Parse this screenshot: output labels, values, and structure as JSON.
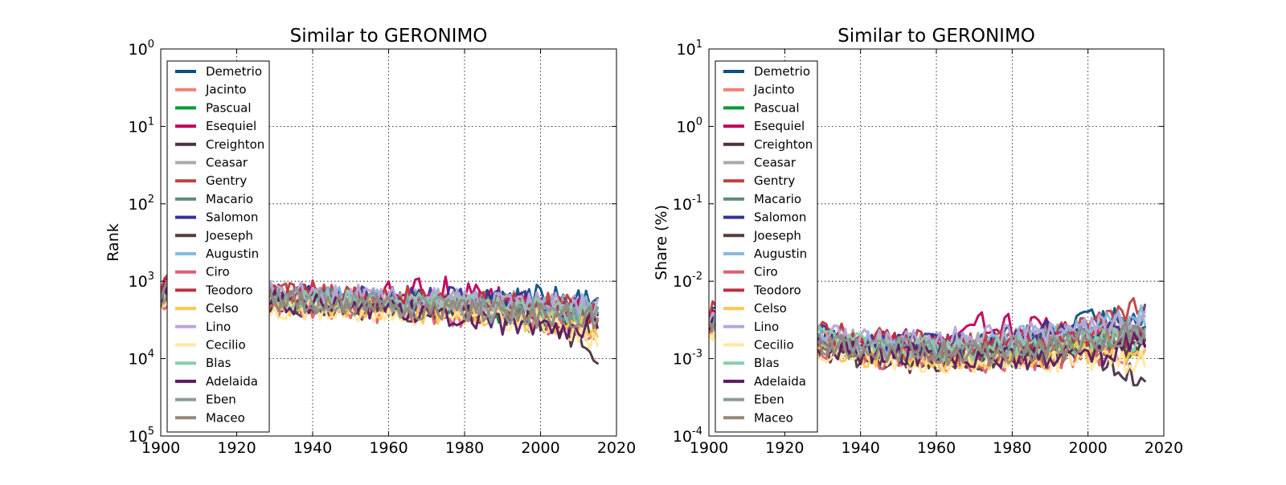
{
  "chart_data": [
    {
      "type": "line",
      "title": "Similar to GERONIMO",
      "xlabel": "",
      "ylabel": "Rank",
      "xlim": [
        1900,
        2020
      ],
      "ylim": [
        100000,
        1
      ],
      "yscale": "log",
      "y_inverted": true,
      "xticks": [
        "1900",
        "1920",
        "1940",
        "1960",
        "1980",
        "2000",
        "2020"
      ],
      "yticks": [
        {
          "base": "10",
          "exp": "0"
        },
        {
          "base": "10",
          "exp": "1"
        },
        {
          "base": "10",
          "exp": "2"
        },
        {
          "base": "10",
          "exp": "3"
        },
        {
          "base": "10",
          "exp": "4"
        },
        {
          "base": "10",
          "exp": "5"
        }
      ],
      "grid": true,
      "legend_position": "upper-left",
      "series": [
        {
          "name": "Demetrio",
          "color": "#0b4f84",
          "x": [
            1900,
            1940,
            1980,
            2000,
            2015
          ],
          "y": [
            1200,
            1800,
            2000,
            1500,
            2000
          ]
        },
        {
          "name": "Jacinto",
          "color": "#f08070",
          "x": [
            1900,
            1940,
            1980,
            2000,
            2015
          ],
          "y": [
            1300,
            1700,
            1900,
            2200,
            2700
          ]
        },
        {
          "name": "Pascual",
          "color": "#009933",
          "x": [
            1900,
            1940,
            1980,
            2000,
            2015
          ],
          "y": [
            1500,
            1800,
            2200,
            2600,
            3000
          ]
        },
        {
          "name": "Esequiel",
          "color": "#c0005a",
          "x": [
            1900,
            1940,
            1975,
            2000,
            2015
          ],
          "y": [
            1300,
            1600,
            1200,
            2300,
            2500
          ]
        },
        {
          "name": "Creighton",
          "color": "#4d3045",
          "x": [
            1900,
            1940,
            1980,
            2000,
            2015
          ],
          "y": [
            1500,
            2000,
            2300,
            3000,
            8000
          ]
        },
        {
          "name": "Ceasar",
          "color": "#aaaaaa",
          "x": [
            1900,
            1940,
            1980,
            2000,
            2015
          ],
          "y": [
            1200,
            1700,
            1800,
            2000,
            2300
          ]
        },
        {
          "name": "Gentry",
          "color": "#c04040",
          "x": [
            1900,
            1940,
            1980,
            2000,
            2015
          ],
          "y": [
            1400,
            1500,
            1900,
            2100,
            1700
          ]
        },
        {
          "name": "Macario",
          "color": "#5f8a80",
          "x": [
            1900,
            1940,
            1980,
            2000,
            2015
          ],
          "y": [
            1400,
            1700,
            2100,
            2400,
            2600
          ]
        },
        {
          "name": "Salomon",
          "color": "#333399",
          "x": [
            1900,
            1940,
            1980,
            2000,
            2015
          ],
          "y": [
            1300,
            1600,
            1700,
            2000,
            2300
          ]
        },
        {
          "name": "Joeseph",
          "color": "#5a3a3a",
          "x": [
            1900,
            1940,
            1980,
            2000,
            2015
          ],
          "y": [
            1600,
            2100,
            2500,
            3200,
            4000
          ]
        },
        {
          "name": "Augustin",
          "color": "#88bbdd",
          "x": [
            1900,
            1940,
            1980,
            2000,
            2015
          ],
          "y": [
            1400,
            1600,
            1900,
            2200,
            2100
          ]
        },
        {
          "name": "Ciro",
          "color": "#e06070",
          "x": [
            1900,
            1940,
            1980,
            2000,
            2015
          ],
          "y": [
            1700,
            2200,
            2700,
            3300,
            4200
          ]
        },
        {
          "name": "Teodoro",
          "color": "#c03040",
          "x": [
            1900,
            1940,
            1980,
            2000,
            2015
          ],
          "y": [
            1100,
            1400,
            1800,
            2200,
            2600
          ]
        },
        {
          "name": "Celso",
          "color": "#ffc850",
          "x": [
            1900,
            1940,
            1980,
            2000,
            2015
          ],
          "y": [
            1800,
            2200,
            2600,
            3200,
            3800
          ]
        },
        {
          "name": "Lino",
          "color": "#b8a8d8",
          "x": [
            1900,
            1940,
            1980,
            2000,
            2015
          ],
          "y": [
            1300,
            1500,
            1800,
            2000,
            1900
          ]
        },
        {
          "name": "Cecilio",
          "color": "#ffe8a0",
          "x": [
            1900,
            1940,
            1980,
            2000,
            2015
          ],
          "y": [
            1700,
            2300,
            2900,
            3500,
            5500
          ]
        },
        {
          "name": "Blas",
          "color": "#88ccaa",
          "x": [
            1900,
            1940,
            1980,
            2000,
            2015
          ],
          "y": [
            1500,
            1700,
            2000,
            2400,
            2800
          ]
        },
        {
          "name": "Adelaida",
          "color": "#5a1a60",
          "x": [
            1900,
            1940,
            1980,
            2000,
            2015
          ],
          "y": [
            1600,
            2000,
            2800,
            4500,
            3500
          ]
        },
        {
          "name": "Eben",
          "color": "#889a9a",
          "x": [
            1900,
            1940,
            1980,
            2000,
            2015
          ],
          "y": [
            1300,
            1800,
            2300,
            2600,
            2900
          ]
        },
        {
          "name": "Maceo",
          "color": "#948878",
          "x": [
            1900,
            1940,
            1980,
            2000,
            2015
          ],
          "y": [
            1500,
            1900,
            2400,
            2800,
            3000
          ]
        }
      ]
    },
    {
      "type": "line",
      "title": "Similar to GERONIMO",
      "xlabel": "",
      "ylabel": "Share (%)",
      "xlim": [
        1900,
        2020
      ],
      "ylim": [
        0.0001,
        10
      ],
      "yscale": "log",
      "xticks": [
        "1900",
        "1920",
        "1940",
        "1960",
        "1980",
        "2000",
        "2020"
      ],
      "yticks": [
        {
          "base": "10",
          "exp": "-4"
        },
        {
          "base": "10",
          "exp": "-3"
        },
        {
          "base": "10",
          "exp": "-2"
        },
        {
          "base": "10",
          "exp": "-1"
        },
        {
          "base": "10",
          "exp": "0"
        },
        {
          "base": "10",
          "exp": "1"
        }
      ],
      "grid": true,
      "legend_position": "upper-left",
      "series": [
        {
          "name": "Demetrio",
          "color": "#0b4f84",
          "x": [
            1900,
            1940,
            1970,
            2000,
            2015
          ],
          "y": [
            0.004,
            0.0015,
            0.0015,
            0.003,
            0.004
          ]
        },
        {
          "name": "Jacinto",
          "color": "#f08070",
          "x": [
            1900,
            1940,
            1970,
            2000,
            2015
          ],
          "y": [
            0.0035,
            0.0015,
            0.0012,
            0.0018,
            0.0025
          ]
        },
        {
          "name": "Pascual",
          "color": "#009933",
          "x": [
            1900,
            1940,
            1970,
            2000,
            2015
          ],
          "y": [
            0.003,
            0.0013,
            0.0011,
            0.0014,
            0.0015
          ]
        },
        {
          "name": "Esequiel",
          "color": "#c0005a",
          "x": [
            1900,
            1940,
            1975,
            2000,
            2015
          ],
          "y": [
            0.0035,
            0.0013,
            0.003,
            0.002,
            0.002
          ]
        },
        {
          "name": "Creighton",
          "color": "#4d3045",
          "x": [
            1900,
            1940,
            1970,
            2000,
            2015
          ],
          "y": [
            0.003,
            0.0009,
            0.001,
            0.0012,
            0.0005
          ]
        },
        {
          "name": "Ceasar",
          "color": "#aaaaaa",
          "x": [
            1900,
            1940,
            1970,
            2000,
            2015
          ],
          "y": [
            0.004,
            0.0016,
            0.0015,
            0.0022,
            0.0025
          ]
        },
        {
          "name": "Gentry",
          "color": "#c04040",
          "x": [
            1900,
            1940,
            1970,
            2000,
            2015
          ],
          "y": [
            0.003,
            0.0015,
            0.0014,
            0.0025,
            0.005
          ]
        },
        {
          "name": "Macario",
          "color": "#5f8a80",
          "x": [
            1900,
            1940,
            1970,
            2000,
            2015
          ],
          "y": [
            0.003,
            0.0014,
            0.0012,
            0.0018,
            0.002
          ]
        },
        {
          "name": "Salomon",
          "color": "#333399",
          "x": [
            1900,
            1940,
            1970,
            2000,
            2015
          ],
          "y": [
            0.0035,
            0.0016,
            0.0016,
            0.0025,
            0.003
          ]
        },
        {
          "name": "Joeseph",
          "color": "#5a3a3a",
          "x": [
            1900,
            1940,
            1970,
            2000,
            2015
          ],
          "y": [
            0.0025,
            0.0011,
            0.0009,
            0.0012,
            0.0015
          ]
        },
        {
          "name": "Augustin",
          "color": "#88bbdd",
          "x": [
            1900,
            1940,
            1970,
            2000,
            2015
          ],
          "y": [
            0.003,
            0.0016,
            0.0015,
            0.0025,
            0.0035
          ]
        },
        {
          "name": "Ciro",
          "color": "#e06070",
          "x": [
            1900,
            1940,
            1970,
            2000,
            2015
          ],
          "y": [
            0.0025,
            0.0011,
            0.0009,
            0.0011,
            0.0012
          ]
        },
        {
          "name": "Teodoro",
          "color": "#c03040",
          "x": [
            1900,
            1940,
            1970,
            2000,
            2015
          ],
          "y": [
            0.004,
            0.0018,
            0.0015,
            0.0018,
            0.002
          ]
        },
        {
          "name": "Celso",
          "color": "#ffc850",
          "x": [
            1900,
            1940,
            1970,
            2000,
            2015
          ],
          "y": [
            0.0025,
            0.0011,
            0.0009,
            0.0012,
            0.0013
          ]
        },
        {
          "name": "Lino",
          "color": "#b8a8d8",
          "x": [
            1900,
            1940,
            1970,
            2000,
            2015
          ],
          "y": [
            0.0035,
            0.0017,
            0.0018,
            0.0025,
            0.003
          ]
        },
        {
          "name": "Cecilio",
          "color": "#ffe8a0",
          "x": [
            1900,
            1940,
            1970,
            2000,
            2015
          ],
          "y": [
            0.0025,
            0.001,
            0.0009,
            0.001,
            0.0009
          ]
        },
        {
          "name": "Blas",
          "color": "#88ccaa",
          "x": [
            1900,
            1940,
            1970,
            2000,
            2015
          ],
          "y": [
            0.003,
            0.0015,
            0.0013,
            0.0017,
            0.0018
          ]
        },
        {
          "name": "Adelaida",
          "color": "#5a1a60",
          "x": [
            1900,
            1940,
            1970,
            2000,
            2015
          ],
          "y": [
            0.0028,
            0.0012,
            0.0011,
            0.001,
            0.0018
          ]
        },
        {
          "name": "Eben",
          "color": "#889a9a",
          "x": [
            1900,
            1940,
            1970,
            2000,
            2015
          ],
          "y": [
            0.0035,
            0.0014,
            0.0012,
            0.0018,
            0.0022
          ]
        },
        {
          "name": "Maceo",
          "color": "#948878",
          "x": [
            1900,
            1940,
            1970,
            2000,
            2015
          ],
          "y": [
            0.003,
            0.0013,
            0.0011,
            0.0015,
            0.0025
          ]
        }
      ]
    }
  ]
}
